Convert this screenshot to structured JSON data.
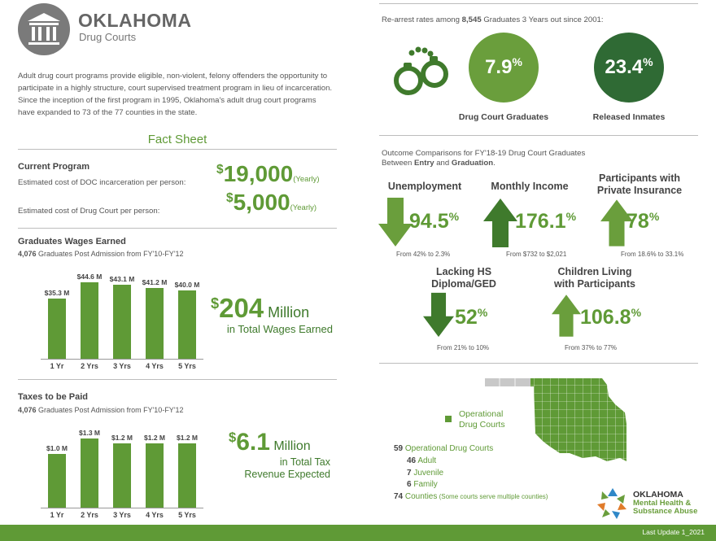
{
  "header": {
    "title": "OKLAHOMA",
    "subtitle": "Drug Courts",
    "intro": "Adult drug court programs provide eligible, non-violent, felony offenders the opportunity to participate in a highly structure, court supervised treatment program in lieu of incarceration.  Since the inception of the first program in 1995, Oklahoma's adult drug court programs have expanded to 73 of the 77 counties in the state."
  },
  "fact_sheet": {
    "title": "Fact Sheet",
    "current_program": {
      "heading": "Current Program",
      "doc_label": "Estimated cost of DOC incarceration per person:",
      "doc_sup": "$",
      "doc_value": "19,000",
      "doc_period": "(Yearly)",
      "court_label": "Estimated cost of Drug Court per person:",
      "court_sup": "$",
      "court_value": "5,000",
      "court_period": "(Yearly)"
    },
    "wages": {
      "heading": "Graduates Wages Earned",
      "sub_count": "4,076",
      "sub_text": " Graduates Post Admission from FY'10-FY'12",
      "total_sup": "$",
      "total_value": "204",
      "total_unit": " Million",
      "total_text": "in Total Wages Earned"
    },
    "taxes": {
      "heading": "Taxes to be Paid",
      "sub_count": "4,076",
      "sub_text": " Graduates Post Admission from FY'10-FY'12",
      "total_sup": "$",
      "total_value": "6.1",
      "total_unit": " Million",
      "total_text1": "in Total Tax",
      "total_text2": "Revenue Expected"
    }
  },
  "chart_data": [
    {
      "type": "bar",
      "title": "Graduates Wages Earned",
      "categories": [
        "1 Yr",
        "2 Yrs",
        "3 Yrs",
        "4 Yrs",
        "5 Yrs"
      ],
      "values": [
        35.3,
        44.6,
        43.1,
        41.2,
        40.0
      ],
      "value_labels": [
        "$35.3 M",
        "$44.6 M",
        "$43.1 M",
        "$41.2 M",
        "$40.0 M"
      ],
      "ylim": [
        0,
        48
      ],
      "color": "#5f9a36"
    },
    {
      "type": "bar",
      "title": "Taxes to be Paid",
      "categories": [
        "1 Yr",
        "2 Yrs",
        "3 Yrs",
        "4 Yrs",
        "5 Yrs"
      ],
      "values": [
        1.0,
        1.3,
        1.2,
        1.2,
        1.2
      ],
      "value_labels": [
        "$1.0 M",
        "$1.3 M",
        "$1.2 M",
        "$1.2 M",
        "$1.2 M"
      ],
      "ylim": [
        0,
        1.4
      ],
      "color": "#5f9a36"
    }
  ],
  "rearrest": {
    "prefix": "Re-arrest rates among ",
    "count": "8,545",
    "suffix": "  Graduates 3 Years out since 2001:",
    "grad_value": "7.9",
    "grad_pct": "%",
    "grad_label": "Drug Court Graduates",
    "released_value": "23.4",
    "released_pct": "%",
    "released_label": "Released Inmates",
    "grad_color": "#6a9e3c",
    "released_color": "#2f6a34"
  },
  "outcomes": {
    "intro1": "Outcome Comparisons for FY'18-19 Drug Court Graduates",
    "intro2_pre": "Between ",
    "intro2_entry": "Entry",
    "intro2_and": " and ",
    "intro2_grad": "Graduation",
    "intro2_end": ".",
    "items": [
      {
        "label": "Unemployment",
        "value": "94.5",
        "pct": "%",
        "from": "From 42% to 2.3%",
        "direction": "down"
      },
      {
        "label": "Monthly Income",
        "value": "176.1",
        "pct": "%",
        "from": "From $732 to $2,021",
        "direction": "up"
      },
      {
        "label1": "Participants with",
        "label2": "Private Insurance",
        "value": "78",
        "pct": "%",
        "from": "From 18.6% to 33.1%",
        "direction": "up"
      },
      {
        "label1": "Lacking HS",
        "label2": "Diploma/GED",
        "value": "52",
        "pct": "%",
        "from": "From 21% to 10%",
        "direction": "down"
      },
      {
        "label1": "Children Living",
        "label2": "with Participants",
        "value": "106.8",
        "pct": "%",
        "from": "From 37% to 77%",
        "direction": "up"
      }
    ]
  },
  "map": {
    "legend1": "Operational",
    "legend2": "Drug Courts",
    "map_color": "#5f9a36",
    "inactive_color": "#c8c8c8"
  },
  "counts": {
    "operational_n": "59",
    "operational_t": " Operational Drug Courts",
    "adult_n": "46",
    "adult_t": " Adult",
    "juvenile_n": "7",
    "juvenile_t": " Juvenile",
    "family_n": "6",
    "family_t": " Family",
    "counties_n": "74",
    "counties_t": " Counties",
    "counties_note": " (Some courts serve multiple counties)"
  },
  "agency": {
    "line1": "OKLAHOMA",
    "line2": "Mental Health &",
    "line3": "Substance Abuse"
  },
  "footer": {
    "last_update": "Last Update 1_2021"
  }
}
